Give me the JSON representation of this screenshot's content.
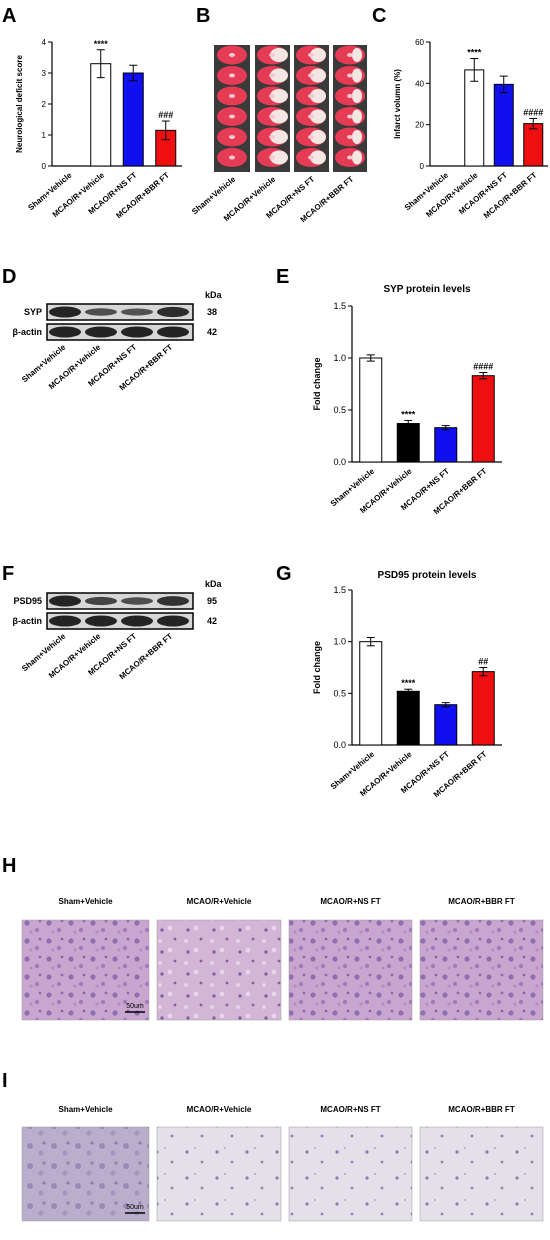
{
  "panels": {
    "A": "A",
    "B": "B",
    "C": "C",
    "D": "D",
    "E": "E",
    "F": "F",
    "G": "G",
    "H": "H",
    "I": "I"
  },
  "groups": [
    "Sham+Vehicle",
    "MCAO/R+Vehicle",
    "MCAO/R+NS FT",
    "MCAO/R+BBR FT"
  ],
  "bar_colors": [
    "#ffffff",
    "#000000",
    "#1010ee",
    "#ee1010"
  ],
  "bar_colors_ac": [
    "#ffffff",
    "#ffffff",
    "#1010ee",
    "#ee1010"
  ],
  "western_D": {
    "kda_label": "kDa",
    "rows": [
      {
        "protein": "SYP",
        "kda": "38"
      },
      {
        "protein": "β-actin",
        "kda": "42"
      }
    ]
  },
  "western_F": {
    "kda_label": "kDa",
    "rows": [
      {
        "protein": "PSD95",
        "kda": "95"
      },
      {
        "protein": "β-actin",
        "kda": "42"
      }
    ]
  },
  "scale_bar_H": "50um",
  "scale_bar_I": "50um",
  "chart_data": [
    {
      "id": "A",
      "type": "bar",
      "title": "",
      "xlabel": "",
      "ylabel": "Neurological deficit score",
      "categories": [
        "Sham+Vehicle",
        "MCAO/R+Vehicle",
        "MCAO/R+NS FT",
        "MCAO/R+BBR FT"
      ],
      "values": [
        0,
        3.3,
        3.0,
        1.15
      ],
      "errors": [
        0,
        0.45,
        0.25,
        0.3
      ],
      "annotations": [
        "",
        "****",
        "",
        "###"
      ],
      "ylim": [
        0,
        4
      ],
      "yticks": [
        "0",
        "1",
        "2",
        "3",
        "4"
      ],
      "yticks_values": [
        0,
        1,
        2,
        3,
        4
      ]
    },
    {
      "id": "C",
      "type": "bar",
      "title": "",
      "xlabel": "",
      "ylabel": "Infarct volumn (%)",
      "categories": [
        "Sham+Vehicle",
        "MCAO/R+Vehicle",
        "MCAO/R+NS FT",
        "MCAO/R+BBR FT"
      ],
      "values": [
        0,
        46.5,
        39.5,
        20.5
      ],
      "errors": [
        0,
        5.5,
        4.0,
        2.5
      ],
      "annotations": [
        "",
        "****",
        "",
        "####"
      ],
      "ylim": [
        0,
        60
      ],
      "yticks": [
        "0",
        "20",
        "40",
        "60"
      ],
      "yticks_values": [
        0,
        20,
        40,
        60
      ]
    },
    {
      "id": "E",
      "type": "bar",
      "title": "SYP protein levels",
      "xlabel": "",
      "ylabel": "Fold change",
      "categories": [
        "Sham+Vehicle",
        "MCAO/R+Vehicle",
        "MCAO/R+NS FT",
        "MCAO/R+BBR FT"
      ],
      "values": [
        1.0,
        0.37,
        0.33,
        0.83
      ],
      "errors": [
        0.03,
        0.03,
        0.02,
        0.03
      ],
      "annotations": [
        "",
        "****",
        "",
        "####"
      ],
      "ylim": [
        0,
        1.5
      ],
      "yticks": [
        "0.0",
        "0.5",
        "1.0",
        "1.5"
      ],
      "yticks_values": [
        0,
        0.5,
        1.0,
        1.5
      ]
    },
    {
      "id": "G",
      "type": "bar",
      "title": "PSD95 protein levels",
      "xlabel": "",
      "ylabel": "Fold change",
      "categories": [
        "Sham+Vehicle",
        "MCAO/R+Vehicle",
        "MCAO/R+NS FT",
        "MCAO/R+BBR FT"
      ],
      "values": [
        1.0,
        0.52,
        0.39,
        0.71
      ],
      "errors": [
        0.04,
        0.02,
        0.02,
        0.04
      ],
      "annotations": [
        "",
        "****",
        "",
        "##"
      ],
      "ylim": [
        0,
        1.5
      ],
      "yticks": [
        "0.0",
        "0.5",
        "1.0",
        "1.5"
      ],
      "yticks_values": [
        0,
        0.5,
        1.0,
        1.5
      ]
    }
  ]
}
